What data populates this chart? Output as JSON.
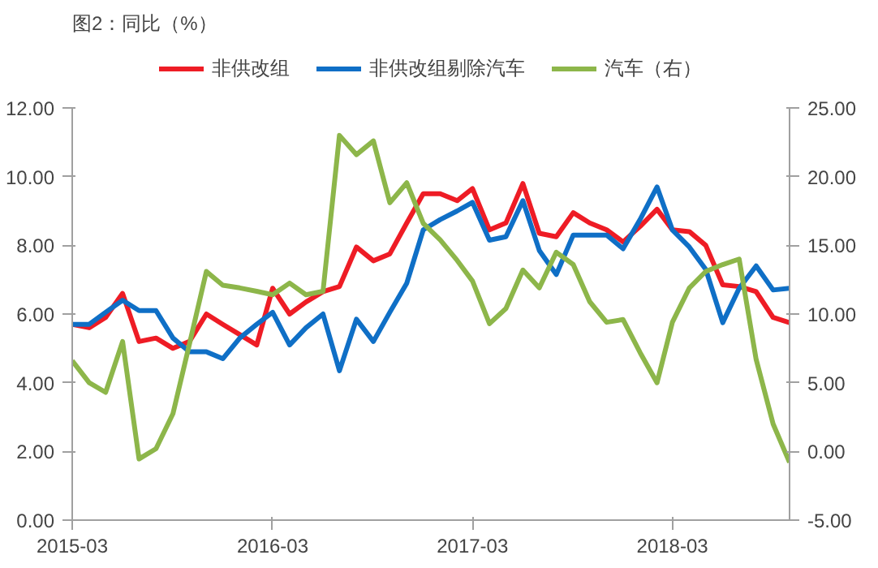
{
  "chart_data": {
    "type": "line",
    "title": "图2：同比（%）",
    "x": [
      "2015-03",
      "2015-04",
      "2015-05",
      "2015-06",
      "2015-07",
      "2015-08",
      "2015-09",
      "2015-10",
      "2015-11",
      "2015-12",
      "2016-01",
      "2016-02",
      "2016-03",
      "2016-04",
      "2016-05",
      "2016-06",
      "2016-07",
      "2016-08",
      "2016-09",
      "2016-10",
      "2016-11",
      "2016-12",
      "2017-01",
      "2017-02",
      "2017-03",
      "2017-04",
      "2017-05",
      "2017-06",
      "2017-07",
      "2017-08",
      "2017-09",
      "2017-10",
      "2017-11",
      "2017-12",
      "2018-01",
      "2018-02",
      "2018-03",
      "2018-04",
      "2018-05",
      "2018-06",
      "2018-07",
      "2018-08",
      "2018-09",
      "2018-10"
    ],
    "series": [
      {
        "name": "非供改组",
        "color": "#ee1c25",
        "values": [
          5.7,
          5.6,
          5.9,
          6.6,
          5.2,
          5.3,
          5.0,
          5.2,
          6.0,
          5.7,
          5.4,
          5.1,
          6.75,
          6.0,
          6.35,
          6.65,
          6.8,
          7.95,
          7.55,
          7.75,
          8.65,
          9.5,
          9.5,
          9.3,
          9.65,
          8.45,
          8.65,
          9.8,
          8.35,
          8.25,
          8.95,
          8.65,
          8.45,
          8.1,
          8.55,
          9.05,
          8.45,
          8.4,
          8.0,
          6.85,
          6.8,
          6.65,
          5.9,
          5.75
        ]
      },
      {
        "name": "非供改组剔除汽车",
        "color": "#0f6fc6",
        "values": [
          5.7,
          5.7,
          6.05,
          6.4,
          6.1,
          6.1,
          5.3,
          4.9,
          4.9,
          4.7,
          5.3,
          5.7,
          6.05,
          5.1,
          5.6,
          6.0,
          4.35,
          5.85,
          5.2,
          6.05,
          6.9,
          8.45,
          8.75,
          9.0,
          9.25,
          8.15,
          8.25,
          9.3,
          7.85,
          7.15,
          8.3,
          8.3,
          8.3,
          7.9,
          8.75,
          9.7,
          8.45,
          7.95,
          7.3,
          5.75,
          6.75,
          7.4,
          6.7,
          6.75
        ]
      },
      {
        "name": "汽车（右）",
        "color": "#8db64a",
        "axis": "y2",
        "values": [
          6.6,
          5.0,
          4.3,
          8.0,
          -0.55,
          0.2,
          2.75,
          7.8,
          13.1,
          12.1,
          11.9,
          11.65,
          11.4,
          12.25,
          11.4,
          11.65,
          23.0,
          21.6,
          22.6,
          18.1,
          19.55,
          16.6,
          15.4,
          13.9,
          12.4,
          9.3,
          10.4,
          13.2,
          11.9,
          14.5,
          13.6,
          10.9,
          9.4,
          9.6,
          7.2,
          5.0,
          9.4,
          11.9,
          13.1,
          13.6,
          14.0,
          6.7,
          2.0,
          -0.8
        ]
      }
    ],
    "xlim": [
      "2015-03",
      "2018-10"
    ],
    "xticks": [
      "2015-03",
      "2016-03",
      "2017-03",
      "2018-03"
    ],
    "ylim": [
      0,
      12
    ],
    "yticks": [
      {
        "value": 0,
        "label": "0.00"
      },
      {
        "value": 2,
        "label": "2.00"
      },
      {
        "value": 4,
        "label": "4.00"
      },
      {
        "value": 6,
        "label": "6.00"
      },
      {
        "value": 8,
        "label": "8.00"
      },
      {
        "value": 10,
        "label": "10.00"
      },
      {
        "value": 12,
        "label": "12.00"
      }
    ],
    "y2lim": [
      -5,
      25
    ],
    "y2ticks": [
      {
        "value": -5,
        "label": "-5.00"
      },
      {
        "value": 0,
        "label": "0.00"
      },
      {
        "value": 5,
        "label": "5.00"
      },
      {
        "value": 10,
        "label": "10.00"
      },
      {
        "value": 15,
        "label": "15.00"
      },
      {
        "value": 20,
        "label": "20.00"
      },
      {
        "value": 25,
        "label": "25.00"
      }
    ],
    "legend": "top",
    "grid": false,
    "marker": "none",
    "line_style": "solid"
  }
}
